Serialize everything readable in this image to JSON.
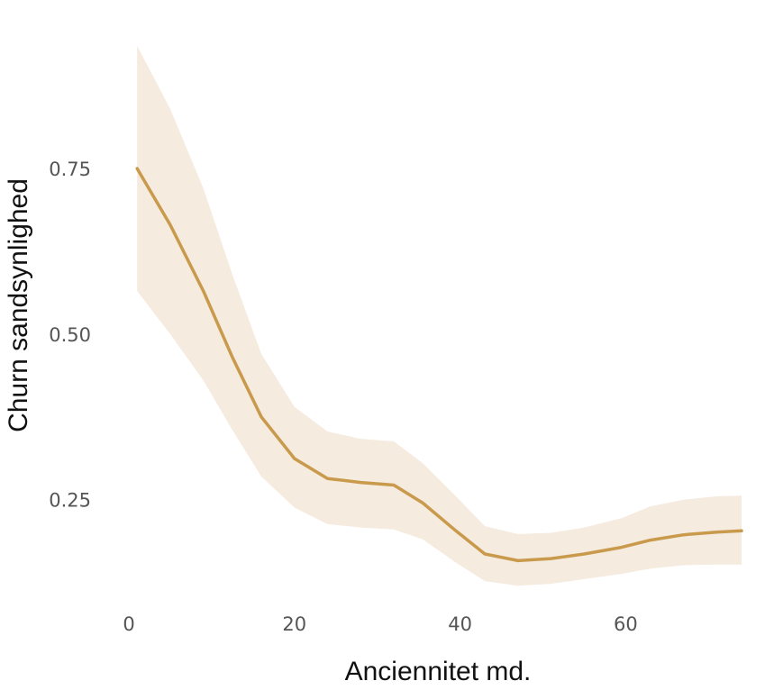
{
  "chart_data": {
    "type": "line",
    "title": "",
    "xlabel": "Anciennitet md.",
    "ylabel": "Churn sandsynlighed",
    "xlim": [
      0,
      74
    ],
    "ylim": [
      0.1,
      0.95
    ],
    "x_ticks": [
      0,
      20,
      40,
      60
    ],
    "x_tick_labels": [
      "0",
      "20",
      "40",
      "60"
    ],
    "y_ticks": [
      0.25,
      0.5,
      0.75
    ],
    "y_tick_labels": [
      "0.25",
      "0.50",
      "0.75"
    ],
    "grid": false,
    "legend": "none",
    "colors": {
      "line": "#C99A4C",
      "band": "#F5EBDF"
    },
    "series": [
      {
        "x": [
          1,
          5,
          9,
          12.5,
          16,
          20,
          24,
          28,
          32,
          35.5,
          39.5,
          43,
          47,
          51,
          55,
          59.5,
          63,
          67,
          71,
          74
        ],
        "values": [
          0.75,
          0.665,
          0.565,
          0.465,
          0.375,
          0.312,
          0.282,
          0.276,
          0.272,
          0.245,
          0.203,
          0.168,
          0.158,
          0.161,
          0.168,
          0.178,
          0.189,
          0.197,
          0.201,
          0.203
        ],
        "lower": [
          0.565,
          0.5,
          0.43,
          0.355,
          0.285,
          0.238,
          0.213,
          0.208,
          0.205,
          0.19,
          0.155,
          0.127,
          0.12,
          0.123,
          0.13,
          0.138,
          0.146,
          0.151,
          0.152,
          0.152
        ],
        "upper": [
          0.935,
          0.84,
          0.72,
          0.59,
          0.47,
          0.39,
          0.353,
          0.342,
          0.338,
          0.305,
          0.255,
          0.21,
          0.198,
          0.2,
          0.208,
          0.222,
          0.24,
          0.25,
          0.255,
          0.256
        ]
      }
    ]
  }
}
